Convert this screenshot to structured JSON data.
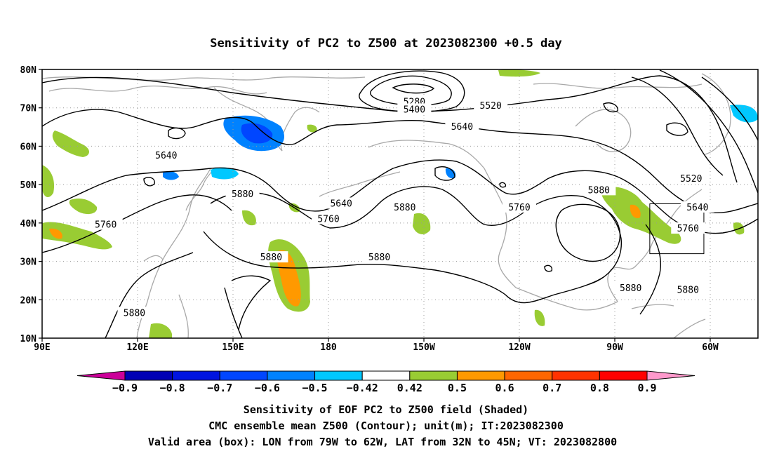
{
  "title": "Sensitivity of PC2 to Z500 at 2023082300 +0.5 day",
  "map": {
    "lat_labels": [
      "80N",
      "70N",
      "60N",
      "50N",
      "40N",
      "30N",
      "20N",
      "10N"
    ],
    "lat_values": [
      80,
      70,
      60,
      50,
      40,
      30,
      20,
      10
    ],
    "lon_labels": [
      "90E",
      "120E",
      "150E",
      "180",
      "150W",
      "120W",
      "90W",
      "60W"
    ],
    "lon_values": [
      90,
      120,
      150,
      180,
      210,
      240,
      270,
      300
    ],
    "lon_range_deg": [
      90,
      315
    ],
    "lat_range_deg": [
      10,
      80
    ],
    "gridlines": "dotted",
    "coastline_color": "#a8a8a8",
    "contour_color": "#000000",
    "valid_box": {
      "lon_west": "79W",
      "lon_east": "62W",
      "lat_south": "32N",
      "lat_north": "45N"
    },
    "contour_labels": [
      {
        "text": "5280",
        "lon": 207,
        "lat": 71.5
      },
      {
        "text": "5400",
        "lon": 207,
        "lat": 69.5
      },
      {
        "text": "5520",
        "lon": 231,
        "lat": 70.5
      },
      {
        "text": "5640",
        "lon": 222,
        "lat": 65
      },
      {
        "text": "5640",
        "lon": 129,
        "lat": 57.5
      },
      {
        "text": "5880",
        "lon": 153,
        "lat": 47.5
      },
      {
        "text": "5640",
        "lon": 184,
        "lat": 45
      },
      {
        "text": "5760",
        "lon": 180,
        "lat": 41
      },
      {
        "text": "5880",
        "lon": 204,
        "lat": 44
      },
      {
        "text": "5760",
        "lon": 240,
        "lat": 44
      },
      {
        "text": "5880",
        "lon": 265,
        "lat": 48.5
      },
      {
        "text": "5520",
        "lon": 294,
        "lat": 51.5
      },
      {
        "text": "5640",
        "lon": 296,
        "lat": 44
      },
      {
        "text": "5760",
        "lon": 293,
        "lat": 38.5
      },
      {
        "text": "5760",
        "lon": 110,
        "lat": 39.5
      },
      {
        "text": "5880",
        "lon": 162,
        "lat": 31
      },
      {
        "text": "5880",
        "lon": 196,
        "lat": 31
      },
      {
        "text": "5880",
        "lon": 275,
        "lat": 23
      },
      {
        "text": "5880",
        "lon": 293,
        "lat": 22.5
      },
      {
        "text": "5880",
        "lon": 119,
        "lat": 16.5
      }
    ]
  },
  "colorbar": {
    "labels": [
      "−0.9",
      "−0.8",
      "−0.7",
      "−0.6",
      "−0.5",
      "−0.42",
      "0.42",
      "0.5",
      "0.6",
      "0.7",
      "0.8",
      "0.9"
    ],
    "colors": [
      "#0000b4",
      "#0014e0",
      "#0046ff",
      "#0082ff",
      "#00c8ff",
      "#ffffff",
      "#99cc33",
      "#ff9900",
      "#ff6600",
      "#ff3300",
      "#ff0000"
    ],
    "low_end_color": "#cc0099",
    "high_end_color": "#ff99cc"
  },
  "captions": {
    "line1": "Sensitivity of EOF PC2 to Z500 field (Shaded)",
    "line2": "CMC ensemble mean Z500 (Contour); unit(m); IT:2023082300",
    "line3": "Valid area (box): LON from 79W to 62W, LAT from 32N to 45N; VT: 2023082800"
  }
}
